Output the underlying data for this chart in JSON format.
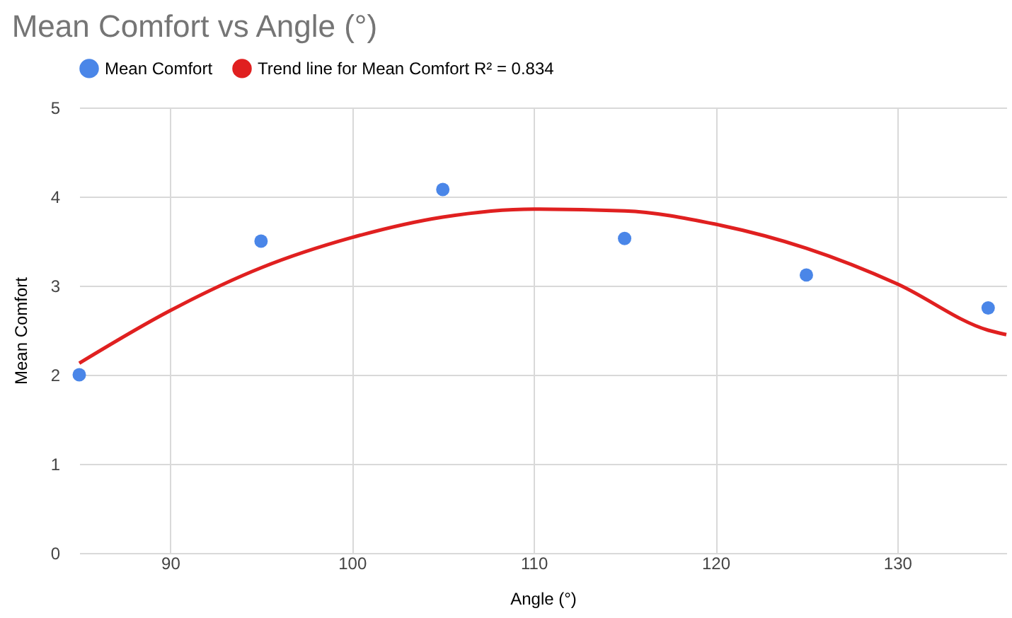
{
  "chart_data": {
    "type": "scatter",
    "title": "Mean Comfort vs Angle (°)",
    "xlabel": "Angle (°)",
    "ylabel": "Mean Comfort",
    "xlim": [
      85,
      136
    ],
    "xticks": [
      90,
      100,
      110,
      120,
      130
    ],
    "ylim": [
      0,
      5
    ],
    "yticks": [
      0,
      1,
      2,
      3,
      4,
      5
    ],
    "grid": true,
    "legend": "top",
    "series": [
      {
        "name": "Mean Comfort",
        "marker": "circle",
        "color": "#4a86e8",
        "x": [
          85,
          95,
          105,
          115,
          125,
          135
        ],
        "values": [
          2.0,
          3.5,
          4.08,
          3.53,
          3.12,
          2.75
        ]
      },
      {
        "name": "Trend line for Mean Comfort R² = 0.834",
        "type": "line",
        "color": "#e02020",
        "x": [
          85,
          90,
          95,
          100,
          105,
          110,
          115,
          120,
          125,
          130,
          135,
          136
        ],
        "values": [
          2.13,
          2.72,
          3.2,
          3.54,
          3.77,
          3.86,
          3.84,
          3.69,
          3.42,
          3.02,
          2.5,
          2.45
        ]
      }
    ]
  }
}
